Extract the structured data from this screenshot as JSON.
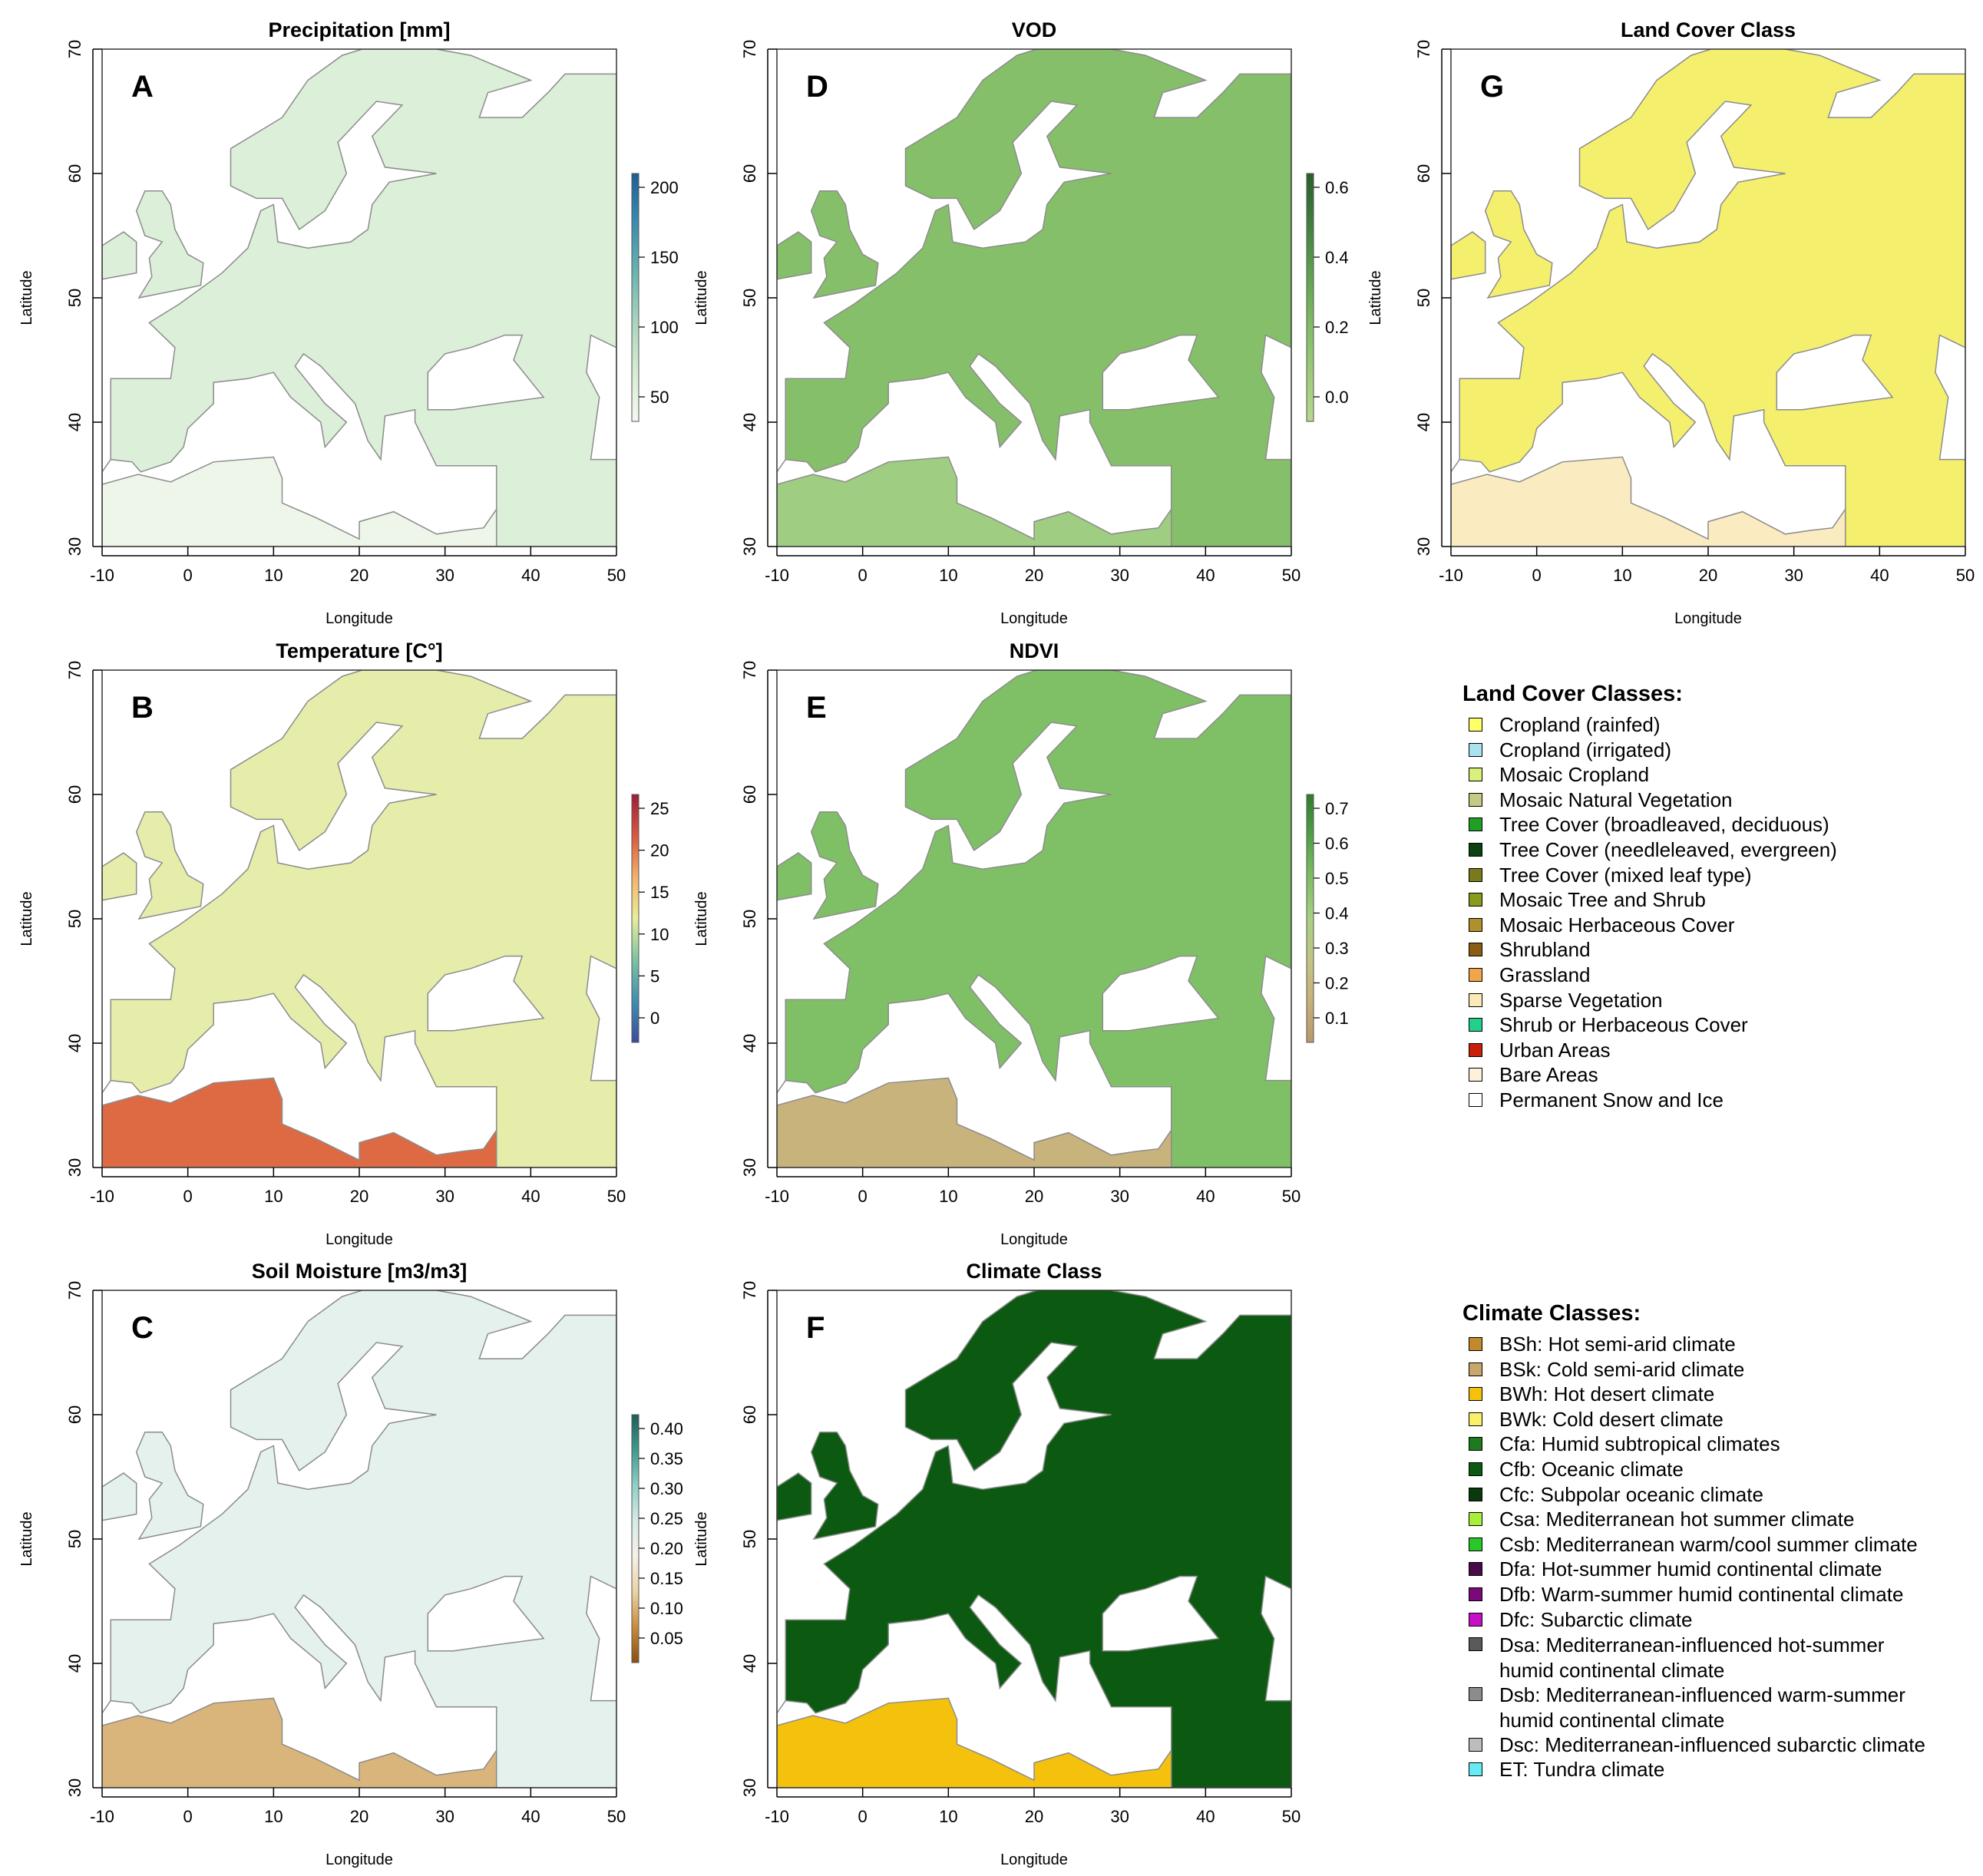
{
  "panels": [
    {
      "id": "precip",
      "letter": "A",
      "title": "Precipitation [mm]",
      "colorbar": {
        "ticks": [
          "200",
          "150",
          "100",
          "50"
        ],
        "ramp": [
          "#f3f9f1",
          "#d8ecd3",
          "#a9d5bd",
          "#6bb4b0",
          "#3b8cb0",
          "#1d5f96"
        ]
      }
    },
    {
      "id": "vod",
      "letter": "D",
      "title": "VOD",
      "colorbar": {
        "ticks": [
          "0.6",
          "0.4",
          "0.2",
          "0.0"
        ],
        "ramp": [
          "#b6d88f",
          "#9ccb78",
          "#7fba62",
          "#5fa050",
          "#3f7f3d",
          "#2a5e2c"
        ]
      }
    },
    {
      "id": "landcover",
      "letter": "G",
      "title": "Land Cover Class",
      "colorbar": null
    },
    {
      "id": "temp",
      "letter": "B",
      "title": "Temperature [C°]",
      "colorbar": {
        "ticks": [
          "25",
          "20",
          "15",
          "10",
          "5",
          "0"
        ],
        "ramp": [
          "#3d4a9c",
          "#3f8fb0",
          "#7cc3a4",
          "#e9ee9a",
          "#f4b26a",
          "#d9583f",
          "#9e1d37"
        ]
      }
    },
    {
      "id": "ndvi",
      "letter": "E",
      "title": "NDVI",
      "colorbar": {
        "ticks": [
          "0.7",
          "0.6",
          "0.5",
          "0.4",
          "0.3",
          "0.2",
          "0.1"
        ],
        "ramp": [
          "#b89a6b",
          "#c9b07a",
          "#c2c486",
          "#a8cf82",
          "#7fbe63",
          "#51a046",
          "#2f7c2f"
        ]
      }
    },
    {
      "id": "soil",
      "letter": "C",
      "title": "Soil Moisture [m3/m3]",
      "colorbar": {
        "ticks": [
          "0.40",
          "0.35",
          "0.30",
          "0.25",
          "0.20",
          "0.15",
          "0.10",
          "0.05"
        ],
        "ramp": [
          "#8a4f0f",
          "#c98b3e",
          "#ebd3a3",
          "#f6f1e6",
          "#d6ece7",
          "#8fcfc6",
          "#3f9a8e",
          "#1b5f58"
        ]
      }
    },
    {
      "id": "climate",
      "letter": "F",
      "title": "Climate Class",
      "colorbar": null
    }
  ],
  "axes": {
    "xlabel": "Longitude",
    "ylabel": "Latitude",
    "xticks": [
      "-10",
      "0",
      "10",
      "20",
      "30",
      "40",
      "50"
    ],
    "yticks": [
      "70",
      "60",
      "50",
      "40",
      "30"
    ]
  },
  "map_colors": {
    "land": "#e9f3e3",
    "sea": "#ffffff",
    "border": "#8c8c8c"
  },
  "landcover_legend": {
    "title": "Land Cover Classes:",
    "items": [
      {
        "label": "Cropland (rainfed)",
        "color": "#ffff66"
      },
      {
        "label": "Cropland (irrigated)",
        "color": "#a9e3ef"
      },
      {
        "label": "Mosaic Cropland",
        "color": "#d9f07a"
      },
      {
        "label": "Mosaic Natural Vegetation",
        "color": "#c4c986"
      },
      {
        "label": "Tree Cover (broadleaved, deciduous)",
        "color": "#1fa024"
      },
      {
        "label": "Tree Cover (needleleaved, evergreen)",
        "color": "#0b4210"
      },
      {
        "label": "Tree Cover (mixed leaf type)",
        "color": "#787a1c"
      },
      {
        "label": "Mosaic Tree and Shrub",
        "color": "#8a9a1c"
      },
      {
        "label": "Mosaic Herbaceous Cover",
        "color": "#b0902a"
      },
      {
        "label": "Shrubland",
        "color": "#8b5d14"
      },
      {
        "label": "Grassland",
        "color": "#f2a64a"
      },
      {
        "label": "Sparse Vegetation",
        "color": "#fbe9b8"
      },
      {
        "label": "Shrub or Herbaceous Cover",
        "color": "#22d08a"
      },
      {
        "label": "Urban Areas",
        "color": "#c81e0a"
      },
      {
        "label": "Bare Areas",
        "color": "#fdf1dc"
      },
      {
        "label": "Permanent Snow and Ice",
        "color": "#ffffff"
      }
    ]
  },
  "climate_legend": {
    "title": "Climate Classes:",
    "items": [
      {
        "label": "BSh: Hot semi-arid climate",
        "color": "#c28a2c"
      },
      {
        "label": "BSk: Cold semi-arid climate",
        "color": "#c8a86a"
      },
      {
        "label": "BWh: Hot desert climate",
        "color": "#f4c20d"
      },
      {
        "label": "BWk: Cold desert climate",
        "color": "#fbf06a"
      },
      {
        "label": "Cfa: Humid subtropical climates",
        "color": "#1e7a1e"
      },
      {
        "label": "Cfb: Oceanic climate",
        "color": "#0c5a12"
      },
      {
        "label": "Cfc: Subpolar oceanic climate",
        "color": "#0a3a0c"
      },
      {
        "label": "Csa: Mediterranean hot summer climate",
        "color": "#a8ef3c"
      },
      {
        "label": "Csb: Mediterranean warm/cool summer climate",
        "color": "#28c828"
      },
      {
        "label": "Dfa: Hot-summer humid continental climate",
        "color": "#4a0a4a"
      },
      {
        "label": "Dfb: Warm-summer humid continental climate",
        "color": "#7a0a7a"
      },
      {
        "label": "Dfc: Subarctic climate",
        "color": "#c80fc8"
      },
      {
        "label": "Dsa: Mediterranean-influenced hot-summer humid continental climate",
        "color": "#5a5a5a",
        "tall": true
      },
      {
        "label": "Dsb: Mediterranean-influenced warm-summer humid continental climate",
        "color": "#8c8c8c",
        "tall": true
      },
      {
        "label": "Dsc: Mediterranean-influenced subarctic climate",
        "color": "#bdbdbd"
      },
      {
        "label": "ET: Tundra climate",
        "color": "#66ebf5"
      }
    ]
  }
}
